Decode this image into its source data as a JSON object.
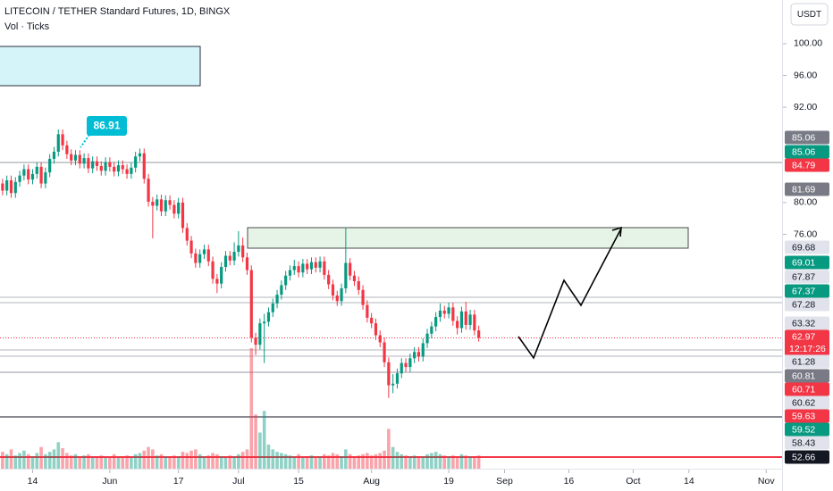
{
  "chart_data": {
    "type": "candlestick",
    "title": "LITECOIN / TETHER Standard Futures, 1D, BINGX",
    "subtitle": "Vol · Ticks",
    "currency": "USDT",
    "annotation": "86.91",
    "countdown": "12:17:26",
    "up_color": "#089981",
    "down_color": "#f23645",
    "xlim": [
      -0.6,
      181.7
    ],
    "xticks": [
      {
        "value": 7,
        "label": "14"
      },
      {
        "value": 25,
        "label": "Jun"
      },
      {
        "value": 41,
        "label": "17"
      },
      {
        "value": 55,
        "label": "Jul"
      },
      {
        "value": 69,
        "label": "15"
      },
      {
        "value": 86,
        "label": "Aug"
      },
      {
        "value": 104,
        "label": "19"
      },
      {
        "value": 117,
        "label": "Sep"
      },
      {
        "value": 132,
        "label": "16"
      },
      {
        "value": 147,
        "label": "Oct"
      },
      {
        "value": 160,
        "label": "14"
      },
      {
        "value": 178,
        "label": "Nov"
      }
    ],
    "ylim": [
      46.5,
      105.5
    ],
    "yticks": [
      {
        "value": 100,
        "label": "100.00"
      },
      {
        "value": 96,
        "label": "96.00"
      },
      {
        "value": 92,
        "label": "92.00"
      },
      {
        "value": 80,
        "label": "80.00"
      },
      {
        "value": 76,
        "label": "76.00"
      }
    ],
    "last_price": 62.97,
    "x": [
      0,
      1,
      2,
      3,
      4,
      5,
      6,
      7,
      8,
      9,
      10,
      11,
      12,
      13,
      14,
      15,
      16,
      17,
      18,
      19,
      20,
      21,
      22,
      23,
      24,
      25,
      26,
      27,
      28,
      29,
      30,
      31,
      32,
      33,
      34,
      35,
      36,
      37,
      38,
      39,
      40,
      41,
      42,
      43,
      44,
      45,
      46,
      47,
      48,
      49,
      50,
      51,
      52,
      53,
      54,
      55,
      56,
      57,
      58,
      59,
      60,
      61,
      62,
      63,
      64,
      65,
      66,
      67,
      68,
      69,
      70,
      71,
      72,
      73,
      74,
      75,
      76,
      77,
      78,
      79,
      80,
      81,
      82,
      83,
      84,
      85,
      86,
      87,
      88,
      89,
      90,
      91,
      92,
      93,
      94,
      95,
      96,
      97,
      98,
      99,
      100,
      101,
      102,
      103,
      104,
      105,
      106,
      107,
      108,
      109,
      110,
      111
    ],
    "open": [
      82.4,
      81.5,
      82.8,
      81.2,
      82.6,
      83.4,
      84.2,
      82.9,
      83.6,
      84.5,
      82.4,
      83.8,
      85.5,
      86.4,
      88.6,
      87.2,
      86.1,
      85.3,
      86.0,
      84.9,
      85.6,
      84.3,
      85.2,
      84.6,
      84.0,
      85.1,
      84.5,
      83.9,
      84.7,
      84.2,
      83.6,
      84.4,
      85.8,
      86.2,
      83.0,
      80.1,
      79.6,
      80.4,
      78.9,
      80.3,
      79.7,
      78.6,
      80.0,
      76.8,
      75.2,
      73.6,
      72.4,
      73.5,
      74.1,
      72.6,
      70.4,
      69.8,
      71.9,
      73.3,
      72.7,
      73.8,
      74.6,
      73.1,
      71.5,
      63.0,
      62.1,
      64.8,
      65.0,
      66.2,
      67.3,
      68.4,
      69.6,
      70.8,
      71.5,
      72.0,
      71.2,
      72.3,
      71.6,
      72.5,
      71.8,
      72.6,
      70.9,
      69.7,
      68.3,
      67.6,
      69.2,
      72.4,
      70.8,
      70.1,
      69.0,
      67.1,
      65.5,
      64.8,
      63.3,
      62.4,
      59.9,
      57.0,
      57.2,
      58.5,
      59.8,
      59.3,
      60.4,
      61.2,
      60.6,
      62.3,
      63.5,
      64.4,
      65.6,
      66.4,
      66.0,
      66.8,
      65.1,
      64.2,
      66.3,
      64.6,
      65.9,
      63.9
    ],
    "high": [
      83.0,
      83.4,
      83.4,
      83.2,
      84.0,
      84.8,
      84.8,
      84.2,
      85.1,
      85.1,
      84.4,
      86.1,
      87.0,
      89.2,
      89.2,
      87.8,
      86.7,
      86.6,
      86.6,
      86.2,
      86.2,
      85.8,
      85.8,
      85.2,
      85.7,
      85.7,
      85.1,
      85.3,
      85.3,
      84.8,
      85.0,
      86.4,
      86.8,
      86.8,
      83.6,
      80.7,
      81.0,
      81.0,
      80.9,
      80.9,
      80.3,
      80.6,
      80.6,
      77.4,
      75.8,
      74.2,
      74.1,
      74.7,
      74.7,
      73.2,
      71.0,
      72.5,
      73.9,
      73.9,
      75.0,
      76.4,
      75.6,
      73.7,
      72.1,
      63.6,
      65.4,
      66.0,
      66.8,
      67.9,
      69.0,
      70.2,
      71.4,
      72.1,
      72.8,
      72.6,
      72.9,
      72.9,
      73.1,
      73.1,
      73.2,
      73.2,
      71.5,
      70.3,
      68.9,
      69.8,
      76.9,
      73.0,
      71.4,
      70.7,
      69.6,
      67.7,
      66.1,
      65.4,
      63.9,
      63.0,
      60.5,
      58.4,
      59.1,
      60.4,
      60.4,
      61.0,
      61.8,
      61.8,
      62.9,
      64.1,
      65.0,
      66.2,
      67.3,
      67.0,
      67.4,
      67.4,
      65.7,
      66.9,
      67.5,
      66.5,
      66.5,
      64.5
    ],
    "low": [
      80.9,
      80.9,
      80.6,
      80.6,
      82.0,
      82.8,
      82.3,
      82.3,
      83.0,
      81.8,
      81.8,
      83.2,
      84.9,
      85.8,
      86.6,
      85.5,
      84.7,
      84.7,
      84.3,
      84.3,
      83.7,
      83.7,
      84.0,
      83.4,
      83.4,
      83.9,
      83.3,
      83.3,
      83.6,
      83.0,
      83.0,
      83.8,
      85.2,
      82.4,
      79.5,
      75.5,
      79.0,
      78.3,
      78.3,
      79.1,
      78.0,
      78.0,
      76.2,
      74.6,
      73.0,
      71.8,
      71.8,
      72.9,
      72.0,
      69.8,
      68.6,
      69.2,
      71.3,
      72.1,
      72.1,
      73.2,
      72.5,
      70.9,
      62.4,
      60.8,
      61.5,
      59.8,
      64.4,
      65.6,
      66.7,
      67.8,
      69.0,
      70.2,
      70.9,
      70.6,
      70.6,
      71.0,
      71.0,
      71.2,
      71.2,
      70.3,
      69.1,
      67.7,
      67.0,
      67.0,
      68.6,
      70.2,
      69.5,
      68.4,
      66.5,
      64.9,
      64.2,
      62.7,
      61.8,
      59.3,
      55.4,
      56.0,
      56.6,
      57.9,
      58.7,
      58.7,
      59.8,
      60.0,
      60.0,
      61.7,
      62.9,
      63.8,
      65.0,
      65.4,
      65.4,
      64.5,
      63.4,
      63.6,
      64.0,
      64.0,
      63.3,
      62.5
    ],
    "close": [
      81.5,
      82.8,
      81.2,
      82.6,
      83.4,
      84.2,
      82.9,
      83.6,
      84.5,
      82.4,
      83.8,
      85.5,
      86.4,
      88.6,
      87.2,
      86.1,
      85.3,
      86.0,
      84.9,
      85.6,
      84.3,
      85.2,
      84.6,
      84.0,
      85.1,
      84.5,
      83.9,
      84.7,
      84.2,
      83.6,
      84.4,
      85.8,
      86.2,
      83.0,
      80.1,
      79.6,
      80.4,
      78.9,
      80.3,
      79.7,
      78.6,
      80.0,
      76.8,
      75.2,
      73.6,
      72.4,
      73.5,
      74.1,
      72.6,
      70.4,
      69.8,
      71.9,
      73.3,
      72.7,
      73.8,
      74.6,
      73.1,
      71.5,
      63.0,
      62.1,
      64.8,
      65.0,
      66.2,
      67.3,
      68.4,
      69.6,
      70.8,
      71.5,
      72.0,
      71.2,
      72.3,
      71.6,
      72.5,
      71.8,
      72.6,
      70.9,
      69.7,
      68.3,
      67.6,
      69.2,
      72.4,
      70.8,
      70.1,
      69.0,
      67.1,
      65.5,
      64.8,
      63.3,
      62.4,
      59.9,
      57.0,
      57.2,
      58.5,
      59.8,
      59.3,
      60.4,
      61.2,
      60.6,
      62.3,
      63.5,
      64.4,
      65.6,
      66.4,
      66.0,
      66.8,
      65.1,
      64.2,
      66.3,
      64.6,
      65.9,
      63.9,
      62.97
    ],
    "volume_ylim": [
      0,
      100
    ],
    "volume": [
      14,
      12,
      16,
      11,
      13,
      15,
      12,
      10,
      13,
      18,
      12,
      14,
      16,
      22,
      17,
      13,
      11,
      12,
      10,
      11,
      12,
      9,
      10,
      11,
      9,
      10,
      12,
      9,
      10,
      11,
      9,
      12,
      13,
      15,
      18,
      16,
      11,
      12,
      10,
      9,
      11,
      10,
      14,
      13,
      15,
      16,
      12,
      10,
      11,
      13,
      12,
      10,
      9,
      11,
      10,
      12,
      14,
      16,
      100,
      45,
      30,
      48,
      20,
      16,
      14,
      13,
      12,
      11,
      10,
      12,
      9,
      10,
      11,
      9,
      10,
      12,
      11,
      13,
      12,
      10,
      16,
      12,
      10,
      11,
      12,
      13,
      11,
      12,
      13,
      15,
      33,
      18,
      14,
      12,
      11,
      10,
      11,
      9,
      10,
      12,
      13,
      14,
      12,
      11,
      10,
      11,
      10,
      12,
      11,
      10,
      9,
      11
    ],
    "price_labels": [
      {
        "value": 85.06,
        "bg": "#787b86",
        "fg": "#ffffff"
      },
      {
        "value": 85.06,
        "bg": "#089981",
        "fg": "#ffffff"
      },
      {
        "value": 84.79,
        "bg": "#f23645",
        "fg": "#ffffff"
      },
      {
        "value": 81.69,
        "bg": "#787b86",
        "fg": "#ffffff"
      },
      {
        "value": 69.68,
        "bg": "#e0e3eb",
        "fg": "#131722"
      },
      {
        "value": 69.01,
        "bg": "#089981",
        "fg": "#ffffff"
      },
      {
        "value": 67.87,
        "bg": "#e0e3eb",
        "fg": "#131722"
      },
      {
        "value": 67.37,
        "bg": "#089981",
        "fg": "#ffffff"
      },
      {
        "value": 67.28,
        "bg": "#e0e3eb",
        "fg": "#131722"
      },
      {
        "value": 63.32,
        "bg": "#e0e3eb",
        "fg": "#131722"
      },
      {
        "value": 62.97,
        "bg": "#f23645",
        "fg": "#ffffff"
      },
      {
        "value": 61.28,
        "bg": "#e0e3eb",
        "fg": "#131722"
      },
      {
        "value": 60.81,
        "bg": "#787b86",
        "fg": "#ffffff"
      },
      {
        "value": 60.71,
        "bg": "#f23645",
        "fg": "#ffffff"
      },
      {
        "value": 60.62,
        "bg": "#e0e3eb",
        "fg": "#131722"
      },
      {
        "value": 59.63,
        "bg": "#f23645",
        "fg": "#ffffff"
      },
      {
        "value": 59.52,
        "bg": "#089981",
        "fg": "#ffffff"
      },
      {
        "value": 58.43,
        "bg": "#e0e3eb",
        "fg": "#131722"
      },
      {
        "value": 52.66,
        "bg": "#131722",
        "fg": "#ffffff"
      }
    ]
  }
}
